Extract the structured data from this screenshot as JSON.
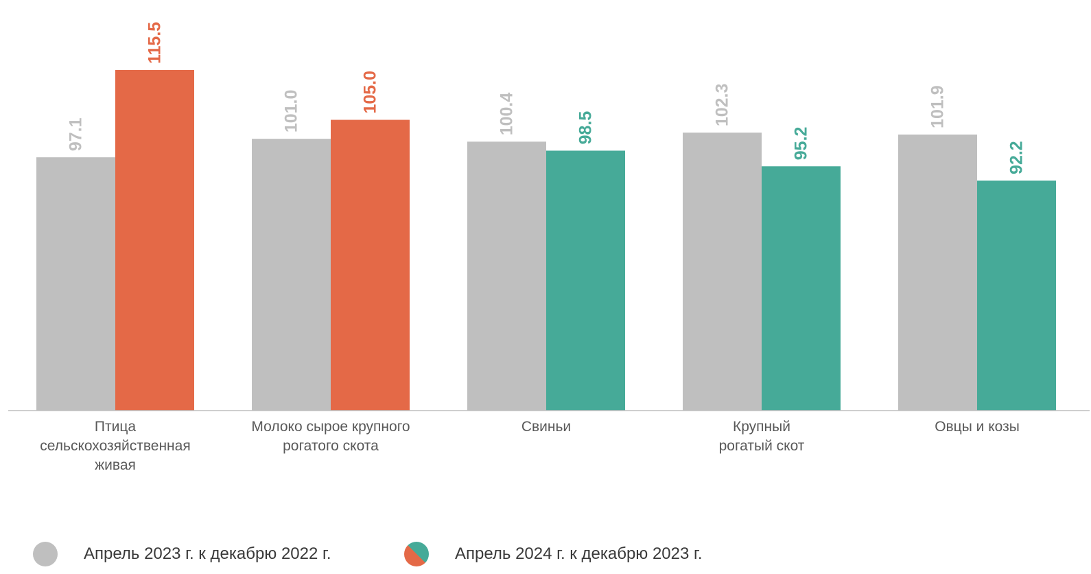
{
  "chart_data": {
    "type": "bar",
    "categories": [
      [
        "Птица",
        "сельскохозяйственная",
        "живая"
      ],
      [
        "Молоко сырое крупного",
        "рогатого скота"
      ],
      [
        "Свиньи"
      ],
      [
        "Крупный",
        "рогатый скот"
      ],
      [
        "Овцы и козы"
      ]
    ],
    "series": [
      {
        "name": "Апрель 2023 г. к  декабрю 2022 г.",
        "values": [
          97.1,
          101.0,
          100.4,
          102.3,
          101.9
        ],
        "labels": [
          "97.1",
          "101.0",
          "100.4",
          "102.3",
          "101.9"
        ]
      },
      {
        "name": "Апрель 2024 г. к декабрю 2023 г.",
        "values": [
          115.5,
          105.0,
          98.5,
          95.2,
          92.2
        ],
        "labels": [
          "115.5",
          "105.0",
          "98.5",
          "95.2",
          "92.2"
        ]
      }
    ],
    "ylim": [
      43.7,
      115.5
    ],
    "colors": {
      "series1": "#BFBFBF",
      "growth": "#E46947",
      "decline": "#46AA98",
      "axis": "#BFBFBF"
    },
    "legend_position": "bottom-left",
    "grid": false
  }
}
